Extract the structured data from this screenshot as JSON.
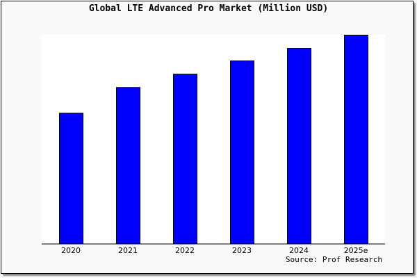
{
  "chart_data": {
    "type": "bar",
    "title": "Global LTE Advanced Pro Market (Million USD)",
    "categories": [
      "2020",
      "2021",
      "2022",
      "2023",
      "2024",
      "2025e"
    ],
    "values": [
      188,
      225,
      244,
      263,
      281,
      300
    ],
    "ylim": [
      0,
      300
    ],
    "xlabel": "",
    "ylabel": "",
    "grid": false,
    "bar_color": "#0000ff",
    "source": "Source: Prof Research"
  }
}
